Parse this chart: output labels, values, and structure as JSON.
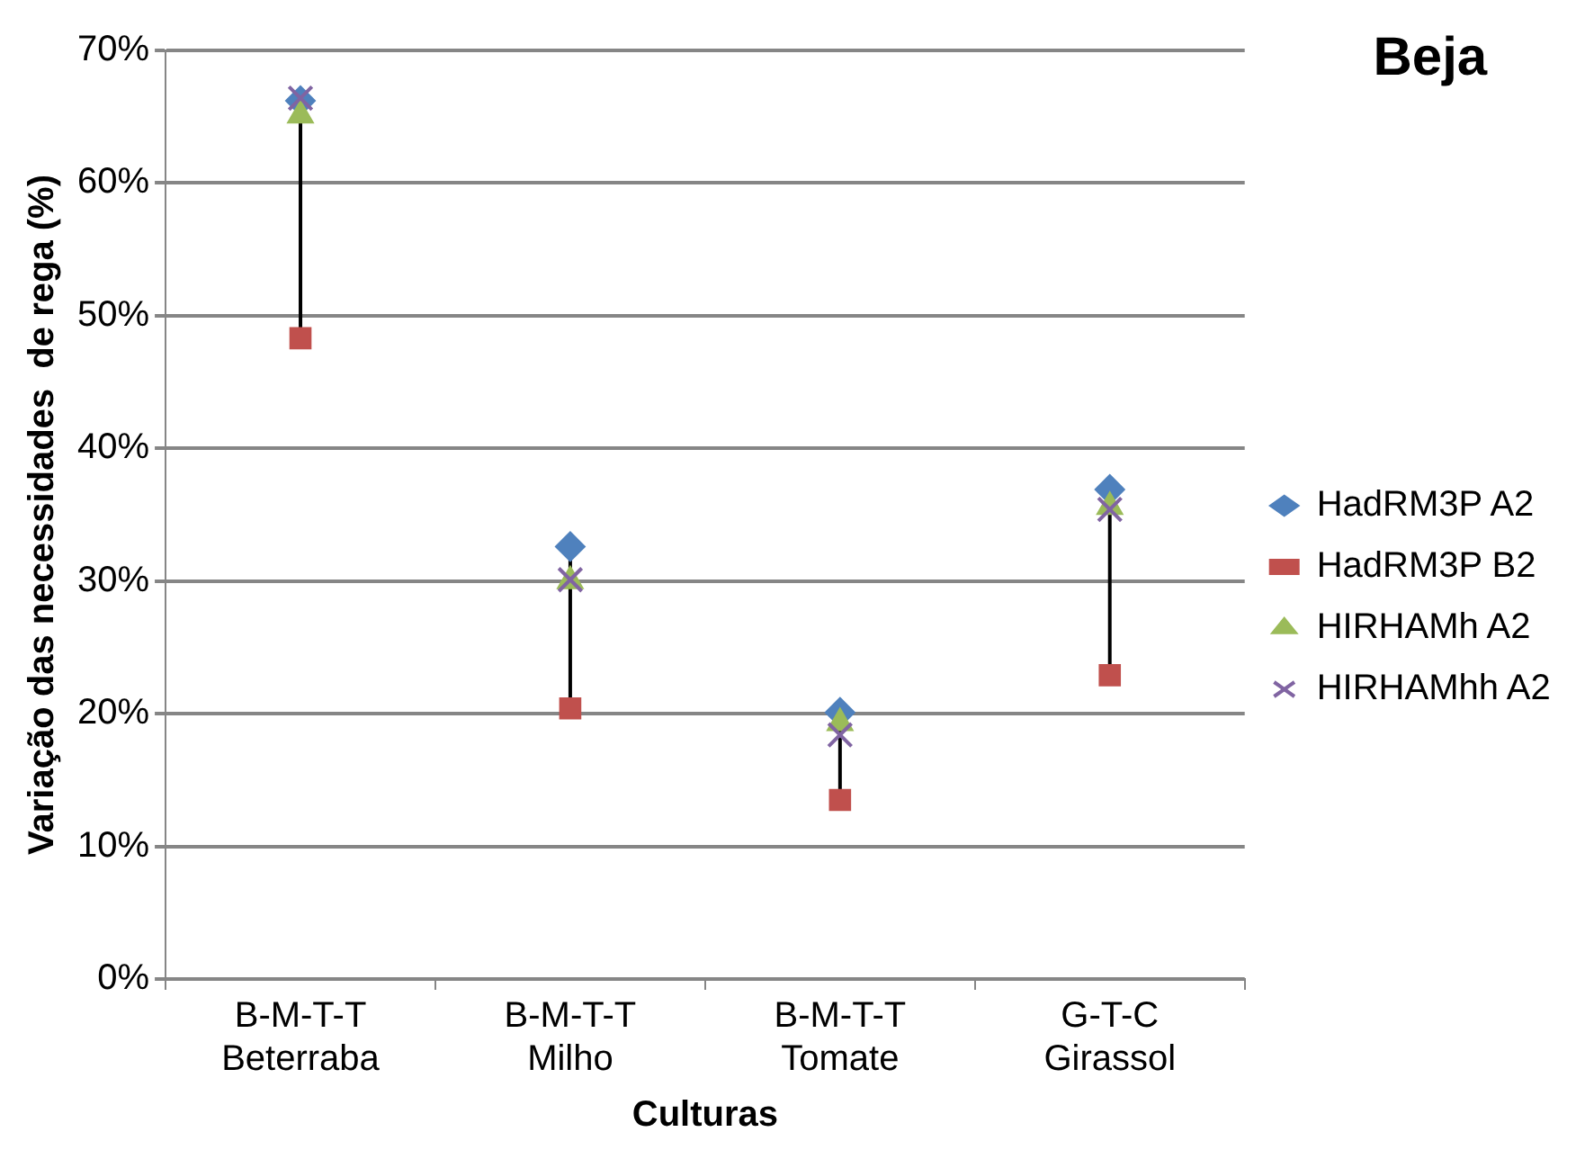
{
  "chart_data": {
    "type": "scatter",
    "title": "Beja",
    "xlabel": "Culturas",
    "ylabel": "Variação das necessidades  de rega (%)",
    "categories": [
      "B-M-T-T Beterraba",
      "B-M-T-T Milho",
      "B-M-T-T Tomate",
      "G-T-C Girassol"
    ],
    "series": [
      {
        "name": "HadRM3P A2",
        "color": "#4f81bd",
        "marker": "diamond",
        "values": [
          66.2,
          32.6,
          20.1,
          36.9
        ]
      },
      {
        "name": "HadRM3P B2",
        "color": "#c0504d",
        "marker": "square",
        "values": [
          48.3,
          20.4,
          13.5,
          22.9
        ]
      },
      {
        "name": "HIRHAMh A2",
        "color": "#9bbb59",
        "marker": "triangle",
        "values": [
          65.1,
          30.0,
          19.3,
          35.6
        ]
      },
      {
        "name": "HIRHAMhh A2",
        "color": "#8064a2",
        "marker": "cross",
        "values": [
          66.4,
          30.1,
          18.4,
          35.4
        ]
      }
    ],
    "ylim": [
      0,
      70
    ],
    "yticks": [
      {
        "value": 0,
        "label": "0%"
      },
      {
        "value": 10,
        "label": "10%"
      },
      {
        "value": 20,
        "label": "20%"
      },
      {
        "value": 30,
        "label": "30%"
      },
      {
        "value": 40,
        "label": "40%"
      },
      {
        "value": 50,
        "label": "50%"
      },
      {
        "value": 60,
        "label": "60%"
      },
      {
        "value": 70,
        "label": "70%"
      }
    ],
    "grid": "y",
    "legend": "right"
  }
}
